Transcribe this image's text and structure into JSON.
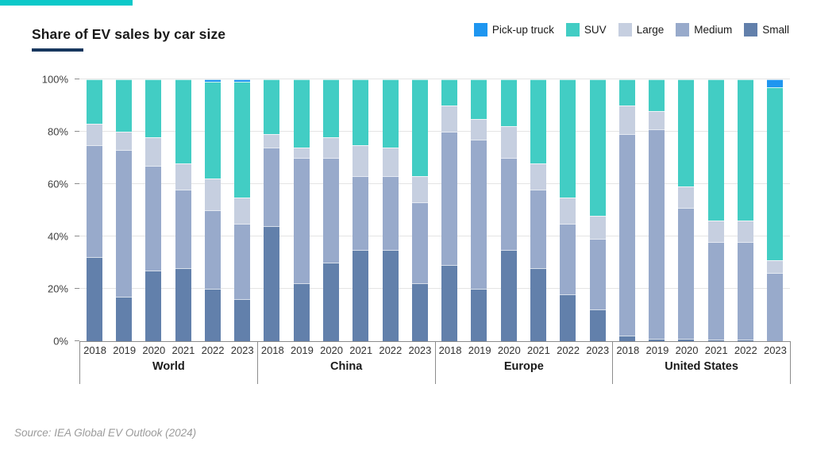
{
  "accent_color": "#0cc9c9",
  "underline_color": "#17375e",
  "header": {
    "title": "Share of EV sales by car size"
  },
  "legend": [
    {
      "label": "Pick-up truck",
      "color": "#1e96f0"
    },
    {
      "label": "SUV",
      "color": "#42cdc4"
    },
    {
      "label": "Large",
      "color": "#c6cfe0"
    },
    {
      "label": "Medium",
      "color": "#98aacb"
    },
    {
      "label": "Small",
      "color": "#6280ab"
    }
  ],
  "source": "Source: IEA Global EV Outlook (2024)",
  "chart_data": {
    "type": "bar",
    "stacked": true,
    "unit": "%",
    "title": "Share of EV sales by car size",
    "ylim": [
      0,
      100
    ],
    "yticks": [
      "0%",
      "20%",
      "40%",
      "60%",
      "80%",
      "100%"
    ],
    "grid": "horizontal",
    "legend_position": "top-right",
    "years": [
      "2018",
      "2019",
      "2020",
      "2021",
      "2022",
      "2023"
    ],
    "series_order_bottom_to_top": [
      "Small",
      "Medium",
      "Large",
      "SUV",
      "Pick-up truck"
    ],
    "colors": {
      "Pick-up truck": "#1e96f0",
      "SUV": "#42cdc4",
      "Large": "#c6cfe0",
      "Medium": "#98aacb",
      "Small": "#6280ab"
    },
    "groups": [
      {
        "label": "World",
        "values": {
          "Small": [
            32,
            17,
            27,
            28,
            20,
            16
          ],
          "Medium": [
            43,
            56,
            40,
            30,
            30,
            29
          ],
          "Large": [
            8,
            7,
            11,
            10,
            12,
            10
          ],
          "SUV": [
            17,
            20,
            22,
            32,
            37,
            44
          ],
          "Pick-up truck": [
            0,
            0,
            0,
            0,
            1,
            1
          ]
        }
      },
      {
        "label": "China",
        "values": {
          "Small": [
            44,
            22,
            30,
            35,
            35,
            22
          ],
          "Medium": [
            30,
            48,
            40,
            28,
            28,
            31
          ],
          "Large": [
            5,
            4,
            8,
            12,
            11,
            10
          ],
          "SUV": [
            21,
            26,
            22,
            25,
            26,
            37
          ],
          "Pick-up truck": [
            0,
            0,
            0,
            0,
            0,
            0
          ]
        }
      },
      {
        "label": "Europe",
        "values": {
          "Small": [
            29,
            20,
            35,
            28,
            18,
            12
          ],
          "Medium": [
            51,
            57,
            35,
            30,
            27,
            27
          ],
          "Large": [
            10,
            8,
            12,
            10,
            10,
            9
          ],
          "SUV": [
            10,
            15,
            18,
            32,
            45,
            52
          ],
          "Pick-up truck": [
            0,
            0,
            0,
            0,
            0,
            0
          ]
        }
      },
      {
        "label": "United States",
        "values": {
          "Small": [
            2,
            1,
            1,
            0.5,
            0.5,
            0
          ],
          "Medium": [
            77,
            80,
            50,
            37.5,
            37.5,
            26
          ],
          "Large": [
            11,
            7,
            8,
            8,
            8,
            5
          ],
          "SUV": [
            10,
            12,
            41,
            54,
            54,
            66
          ],
          "Pick-up truck": [
            0,
            0,
            0,
            0,
            0,
            3
          ]
        }
      }
    ]
  }
}
